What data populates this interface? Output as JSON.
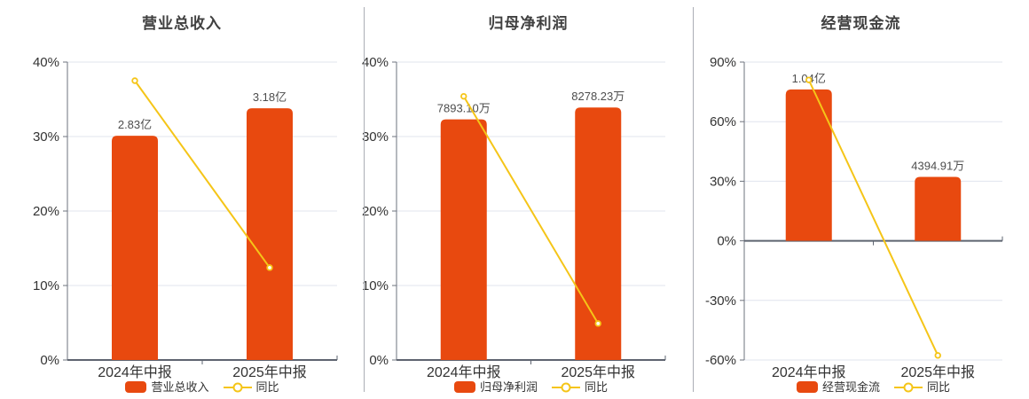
{
  "colors": {
    "background": "#ffffff",
    "bar": "#e8490f",
    "line": "#f5c518",
    "grid": "#e0e4ee",
    "axis": "#6e737d",
    "x_axis": "#5e6470",
    "tick_text": "#333333",
    "value_label": "#4d4d4d",
    "title": "#404040",
    "divider": "#abaeb5"
  },
  "chart_data": [
    {
      "type": "bar+line",
      "title": "营业总收入",
      "categories": [
        "2024年中报",
        "2025年中报"
      ],
      "ylim": [
        0,
        40
      ],
      "yticks": [
        40,
        30,
        20,
        10,
        0
      ],
      "ytick_suffix": "%",
      "grid": true,
      "legend_position": "bottom",
      "series": [
        {
          "name": "营业总收入",
          "type": "bar",
          "value_labels": [
            "2.83亿",
            "3.18亿"
          ],
          "plotted_pct": [
            30.1,
            33.8
          ]
        },
        {
          "name": "同比",
          "type": "line",
          "values_pct": [
            37.5,
            12.4
          ]
        }
      ]
    },
    {
      "type": "bar+line",
      "title": "归母净利润",
      "categories": [
        "2024年中报",
        "2025年中报"
      ],
      "ylim": [
        0,
        40
      ],
      "yticks": [
        40,
        30,
        20,
        10,
        0
      ],
      "ytick_suffix": "%",
      "grid": true,
      "legend_position": "bottom",
      "series": [
        {
          "name": "归母净利润",
          "type": "bar",
          "value_labels": [
            "7893.10万",
            "8278.23万"
          ],
          "plotted_pct": [
            32.3,
            33.9
          ]
        },
        {
          "name": "同比",
          "type": "line",
          "values_pct": [
            35.4,
            4.9
          ]
        }
      ]
    },
    {
      "type": "bar+line",
      "title": "经营现金流",
      "categories": [
        "2024年中报",
        "2025年中报"
      ],
      "ylim": [
        -60,
        90
      ],
      "yticks": [
        90,
        60,
        30,
        0,
        -30,
        -60
      ],
      "ytick_suffix": "%",
      "grid": true,
      "legend_position": "bottom",
      "series": [
        {
          "name": "经营现金流",
          "type": "bar",
          "value_labels": [
            "1.04亿",
            "4394.91万"
          ],
          "plotted_pct": [
            76.2,
            32.2
          ]
        },
        {
          "name": "同比",
          "type": "line",
          "values_pct": [
            81.0,
            -57.7
          ]
        }
      ]
    }
  ]
}
